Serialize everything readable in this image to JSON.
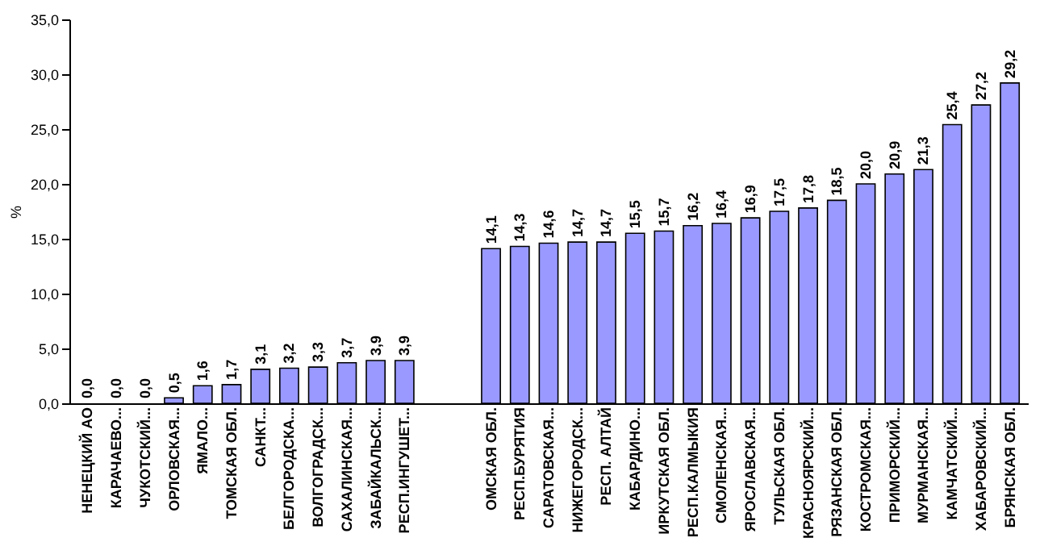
{
  "chart_data": {
    "type": "bar",
    "ylabel": "%",
    "categories": [
      "НЕНЕЦКИЙ АО",
      "КАРАЧАЕВО...",
      "ЧУКОТСКИЙ...",
      "ОРЛОВСКАЯ...",
      "ЯМАЛО...",
      "ТОМСКАЯ ОБЛ.",
      "САНКТ...",
      "БЕЛГОРОДСКА...",
      "ВОЛГОГРАДСК...",
      "САХАЛИНСКАЯ...",
      "ЗАБАЙКАЛЬСК...",
      "РЕСП.ИНГУШЕТ...",
      null,
      null,
      "ОМСКАЯ ОБЛ.",
      "РЕСП.БУРЯТИЯ",
      "САРАТОВСКАЯ...",
      "НИЖЕГОРОДСК...",
      "РЕСП. АЛТАЙ",
      "КАБАРДИНО...",
      "ИРКУТСКАЯ ОБЛ.",
      "РЕСП.КАЛМЫКИЯ",
      "СМОЛЕНСКАЯ...",
      "ЯРОСЛАВСКАЯ...",
      "ТУЛЬСКАЯ ОБЛ.",
      "КРАСНОЯРСКИЙ...",
      "РЯЗАНСКАЯ ОБЛ.",
      "КОСТРОМСКАЯ...",
      "ПРИМОРСКИЙ...",
      "МУРМАНСКАЯ...",
      "КАМЧАТСКИЙ...",
      "ХАБАРОВСКИЙ...",
      "БРЯНСКАЯ ОБЛ."
    ],
    "values": [
      0.0,
      0.0,
      0.0,
      0.5,
      1.6,
      1.7,
      3.1,
      3.2,
      3.3,
      3.7,
      3.9,
      3.9,
      null,
      null,
      14.1,
      14.3,
      14.6,
      14.7,
      14.7,
      15.5,
      15.7,
      16.2,
      16.4,
      16.9,
      17.5,
      17.8,
      18.5,
      20.0,
      20.9,
      21.3,
      25.4,
      27.2,
      29.2
    ],
    "value_labels": [
      "0,0",
      "0,0",
      "0,0",
      "0,5",
      "1,6",
      "1,7",
      "3,1",
      "3,2",
      "3,3",
      "3,7",
      "3,9",
      "3,9",
      null,
      null,
      "14,1",
      "14,3",
      "14,6",
      "14,7",
      "14,7",
      "15,5",
      "15,7",
      "16,2",
      "16,4",
      "16,9",
      "17,5",
      "17,8",
      "18,5",
      "20,0",
      "20,9",
      "21,3",
      "25,4",
      "27,2",
      "29,2"
    ],
    "color": "#9999ff",
    "ylim": [
      0,
      35
    ],
    "yticks": [
      {
        "value": 0,
        "label": "0,0"
      },
      {
        "value": 5,
        "label": "5,0"
      },
      {
        "value": 10,
        "label": "10,0"
      },
      {
        "value": 15,
        "label": "15,0"
      },
      {
        "value": 20,
        "label": "20,0"
      },
      {
        "value": 25,
        "label": "25,0"
      },
      {
        "value": 30,
        "label": "30,0"
      },
      {
        "value": 35,
        "label": "35,0"
      }
    ],
    "grid": false
  }
}
